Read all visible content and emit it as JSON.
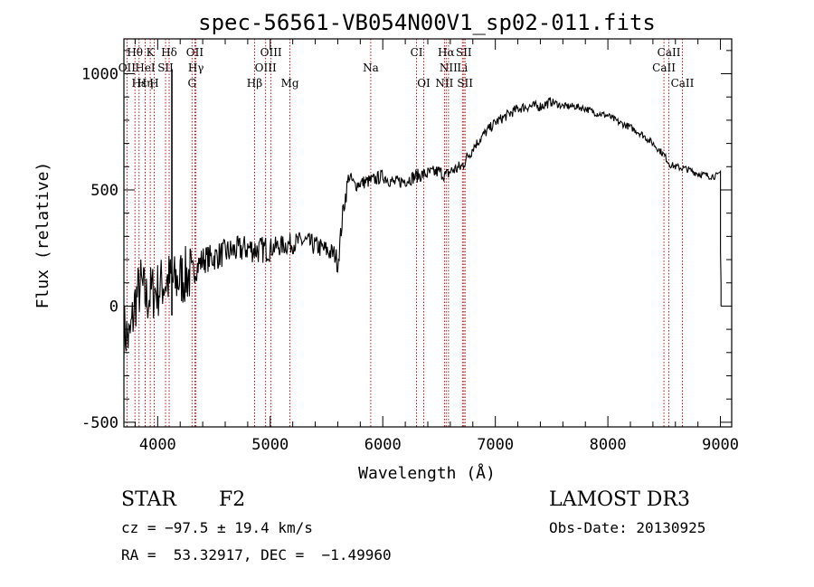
{
  "chart_data": {
    "type": "line",
    "title": "spec-56561-VB054N00V1_sp02-011.fits",
    "xlabel": "Wavelength (Å)",
    "ylabel": "Flux (relative)",
    "xlim": [
      3700,
      9100
    ],
    "ylim": [
      -520,
      1150
    ],
    "xticks": [
      4000,
      5000,
      6000,
      7000,
      8000,
      9000
    ],
    "yticks": [
      -500,
      0,
      500,
      1000
    ],
    "xtick_labels": [
      "4000",
      "5000",
      "6000",
      "7000",
      "8000",
      "9000"
    ],
    "ytick_labels": [
      "-500",
      "0",
      "500",
      "1000"
    ],
    "series": [
      {
        "name": "flux",
        "color": "#000000",
        "points": [
          [
            3700,
            -100
          ],
          [
            3750,
            -150
          ],
          [
            3800,
            20
          ],
          [
            3850,
            90
          ],
          [
            3900,
            30
          ],
          [
            3950,
            60
          ],
          [
            4000,
            70
          ],
          [
            4050,
            100
          ],
          [
            4100,
            110
          ],
          [
            4150,
            100
          ],
          [
            4200,
            120
          ],
          [
            4300,
            140
          ],
          [
            4400,
            200
          ],
          [
            4500,
            210
          ],
          [
            4600,
            230
          ],
          [
            4700,
            240
          ],
          [
            4800,
            250
          ],
          [
            4900,
            240
          ],
          [
            5000,
            250
          ],
          [
            5100,
            260
          ],
          [
            5200,
            270
          ],
          [
            5300,
            280
          ],
          [
            5400,
            260
          ],
          [
            5500,
            240
          ],
          [
            5580,
            220
          ],
          [
            5600,
            180
          ],
          [
            5650,
            420
          ],
          [
            5700,
            560
          ],
          [
            5750,
            520
          ],
          [
            5800,
            530
          ],
          [
            5900,
            540
          ],
          [
            6000,
            560
          ],
          [
            6100,
            530
          ],
          [
            6200,
            540
          ],
          [
            6300,
            560
          ],
          [
            6400,
            570
          ],
          [
            6500,
            580
          ],
          [
            6560,
            560
          ],
          [
            6600,
            580
          ],
          [
            6700,
            600
          ],
          [
            6800,
            680
          ],
          [
            6900,
            740
          ],
          [
            7000,
            790
          ],
          [
            7100,
            820
          ],
          [
            7200,
            850
          ],
          [
            7300,
            860
          ],
          [
            7400,
            860
          ],
          [
            7500,
            880
          ],
          [
            7600,
            860
          ],
          [
            7700,
            860
          ],
          [
            7800,
            850
          ],
          [
            7900,
            830
          ],
          [
            8000,
            820
          ],
          [
            8100,
            790
          ],
          [
            8200,
            770
          ],
          [
            8300,
            740
          ],
          [
            8400,
            700
          ],
          [
            8500,
            650
          ],
          [
            8550,
            610
          ],
          [
            8600,
            600
          ],
          [
            8700,
            590
          ],
          [
            8800,
            570
          ],
          [
            8900,
            560
          ],
          [
            8980,
            560
          ],
          [
            9000,
            580
          ],
          [
            9000,
            240
          ],
          [
            9005,
            100
          ],
          [
            9005,
            0
          ]
        ]
      }
    ],
    "spectral_lines": [
      {
        "label": "Hθ",
        "x": 3798,
        "row": 0
      },
      {
        "label": "K",
        "x": 3934,
        "row": 0
      },
      {
        "label": "Hδ",
        "x": 4102,
        "row": 0
      },
      {
        "label": "OII",
        "x": 4330,
        "row": 0
      },
      {
        "label": "OIII",
        "x": 5007,
        "row": 0
      },
      {
        "label": "CI",
        "x": 6300,
        "row": 0
      },
      {
        "label": "Hα",
        "x": 6563,
        "row": 0
      },
      {
        "label": "SII",
        "x": 6720,
        "row": 0
      },
      {
        "label": "CaII",
        "x": 8542,
        "row": 0
      },
      {
        "label": "OII",
        "x": 3727,
        "row": 1
      },
      {
        "label": "HeI",
        "x": 3889,
        "row": 1
      },
      {
        "label": "SII",
        "x": 4070,
        "row": 1
      },
      {
        "label": "Hγ",
        "x": 4340,
        "row": 1
      },
      {
        "label": "OIII",
        "x": 4959,
        "row": 1
      },
      {
        "label": "Na",
        "x": 5893,
        "row": 1
      },
      {
        "label": "NII",
        "x": 6584,
        "row": 1
      },
      {
        "label": "Li",
        "x": 6708,
        "row": 1
      },
      {
        "label": "CaII",
        "x": 8498,
        "row": 1
      },
      {
        "label": "Hε",
        "x": 3835,
        "row": 2
      },
      {
        "label": "Hη",
        "x": 3889,
        "row": 2
      },
      {
        "label": "H",
        "x": 3969,
        "row": 2
      },
      {
        "label": "G",
        "x": 4305,
        "row": 2
      },
      {
        "label": "Hβ",
        "x": 4861,
        "row": 2
      },
      {
        "label": "Mg",
        "x": 5175,
        "row": 2
      },
      {
        "label": "OI",
        "x": 6364,
        "row": 2
      },
      {
        "label": "NII",
        "x": 6548,
        "row": 2
      },
      {
        "label": "SII",
        "x": 6731,
        "row": 2
      },
      {
        "label": "CaII",
        "x": 8662,
        "row": 2
      }
    ],
    "line_colors": {
      "spectrum": "#000000",
      "marker": "#aa0000"
    },
    "strong_line_x": 4102
  },
  "info": {
    "class": "STAR",
    "subclass": "F2",
    "survey": "LAMOST DR3",
    "cz": "cz = −97.5 ± 19.4 km/s",
    "obs_date": "Obs-Date: 20130925",
    "radec": "RA =  53.32917, DEC =  −1.49960"
  }
}
